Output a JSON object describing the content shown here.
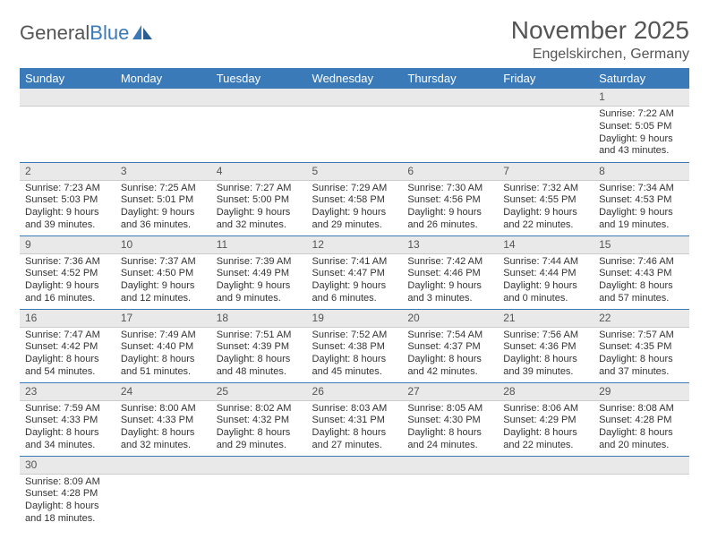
{
  "logo": {
    "text1": "General",
    "text2": "Blue"
  },
  "title": "November 2025",
  "location": "Engelskirchen, Germany",
  "colors": {
    "header_bg": "#3a7ab8",
    "header_text": "#ffffff",
    "daynum_bg": "#e9e9e9",
    "row_divider": "#3a7ab8",
    "text": "#333333",
    "title_text": "#555555"
  },
  "fonts": {
    "title_size_pt": 21,
    "location_size_pt": 12,
    "weekday_size_pt": 10,
    "daynum_size_pt": 9,
    "body_size_pt": 8
  },
  "weekdays": [
    "Sunday",
    "Monday",
    "Tuesday",
    "Wednesday",
    "Thursday",
    "Friday",
    "Saturday"
  ],
  "weeks": [
    [
      {
        "n": "",
        "sunrise": "",
        "sunset": "",
        "daylight": ""
      },
      {
        "n": "",
        "sunrise": "",
        "sunset": "",
        "daylight": ""
      },
      {
        "n": "",
        "sunrise": "",
        "sunset": "",
        "daylight": ""
      },
      {
        "n": "",
        "sunrise": "",
        "sunset": "",
        "daylight": ""
      },
      {
        "n": "",
        "sunrise": "",
        "sunset": "",
        "daylight": ""
      },
      {
        "n": "",
        "sunrise": "",
        "sunset": "",
        "daylight": ""
      },
      {
        "n": "1",
        "sunrise": "Sunrise: 7:22 AM",
        "sunset": "Sunset: 5:05 PM",
        "daylight": "Daylight: 9 hours and 43 minutes."
      }
    ],
    [
      {
        "n": "2",
        "sunrise": "Sunrise: 7:23 AM",
        "sunset": "Sunset: 5:03 PM",
        "daylight": "Daylight: 9 hours and 39 minutes."
      },
      {
        "n": "3",
        "sunrise": "Sunrise: 7:25 AM",
        "sunset": "Sunset: 5:01 PM",
        "daylight": "Daylight: 9 hours and 36 minutes."
      },
      {
        "n": "4",
        "sunrise": "Sunrise: 7:27 AM",
        "sunset": "Sunset: 5:00 PM",
        "daylight": "Daylight: 9 hours and 32 minutes."
      },
      {
        "n": "5",
        "sunrise": "Sunrise: 7:29 AM",
        "sunset": "Sunset: 4:58 PM",
        "daylight": "Daylight: 9 hours and 29 minutes."
      },
      {
        "n": "6",
        "sunrise": "Sunrise: 7:30 AM",
        "sunset": "Sunset: 4:56 PM",
        "daylight": "Daylight: 9 hours and 26 minutes."
      },
      {
        "n": "7",
        "sunrise": "Sunrise: 7:32 AM",
        "sunset": "Sunset: 4:55 PM",
        "daylight": "Daylight: 9 hours and 22 minutes."
      },
      {
        "n": "8",
        "sunrise": "Sunrise: 7:34 AM",
        "sunset": "Sunset: 4:53 PM",
        "daylight": "Daylight: 9 hours and 19 minutes."
      }
    ],
    [
      {
        "n": "9",
        "sunrise": "Sunrise: 7:36 AM",
        "sunset": "Sunset: 4:52 PM",
        "daylight": "Daylight: 9 hours and 16 minutes."
      },
      {
        "n": "10",
        "sunrise": "Sunrise: 7:37 AM",
        "sunset": "Sunset: 4:50 PM",
        "daylight": "Daylight: 9 hours and 12 minutes."
      },
      {
        "n": "11",
        "sunrise": "Sunrise: 7:39 AM",
        "sunset": "Sunset: 4:49 PM",
        "daylight": "Daylight: 9 hours and 9 minutes."
      },
      {
        "n": "12",
        "sunrise": "Sunrise: 7:41 AM",
        "sunset": "Sunset: 4:47 PM",
        "daylight": "Daylight: 9 hours and 6 minutes."
      },
      {
        "n": "13",
        "sunrise": "Sunrise: 7:42 AM",
        "sunset": "Sunset: 4:46 PM",
        "daylight": "Daylight: 9 hours and 3 minutes."
      },
      {
        "n": "14",
        "sunrise": "Sunrise: 7:44 AM",
        "sunset": "Sunset: 4:44 PM",
        "daylight": "Daylight: 9 hours and 0 minutes."
      },
      {
        "n": "15",
        "sunrise": "Sunrise: 7:46 AM",
        "sunset": "Sunset: 4:43 PM",
        "daylight": "Daylight: 8 hours and 57 minutes."
      }
    ],
    [
      {
        "n": "16",
        "sunrise": "Sunrise: 7:47 AM",
        "sunset": "Sunset: 4:42 PM",
        "daylight": "Daylight: 8 hours and 54 minutes."
      },
      {
        "n": "17",
        "sunrise": "Sunrise: 7:49 AM",
        "sunset": "Sunset: 4:40 PM",
        "daylight": "Daylight: 8 hours and 51 minutes."
      },
      {
        "n": "18",
        "sunrise": "Sunrise: 7:51 AM",
        "sunset": "Sunset: 4:39 PM",
        "daylight": "Daylight: 8 hours and 48 minutes."
      },
      {
        "n": "19",
        "sunrise": "Sunrise: 7:52 AM",
        "sunset": "Sunset: 4:38 PM",
        "daylight": "Daylight: 8 hours and 45 minutes."
      },
      {
        "n": "20",
        "sunrise": "Sunrise: 7:54 AM",
        "sunset": "Sunset: 4:37 PM",
        "daylight": "Daylight: 8 hours and 42 minutes."
      },
      {
        "n": "21",
        "sunrise": "Sunrise: 7:56 AM",
        "sunset": "Sunset: 4:36 PM",
        "daylight": "Daylight: 8 hours and 39 minutes."
      },
      {
        "n": "22",
        "sunrise": "Sunrise: 7:57 AM",
        "sunset": "Sunset: 4:35 PM",
        "daylight": "Daylight: 8 hours and 37 minutes."
      }
    ],
    [
      {
        "n": "23",
        "sunrise": "Sunrise: 7:59 AM",
        "sunset": "Sunset: 4:33 PM",
        "daylight": "Daylight: 8 hours and 34 minutes."
      },
      {
        "n": "24",
        "sunrise": "Sunrise: 8:00 AM",
        "sunset": "Sunset: 4:33 PM",
        "daylight": "Daylight: 8 hours and 32 minutes."
      },
      {
        "n": "25",
        "sunrise": "Sunrise: 8:02 AM",
        "sunset": "Sunset: 4:32 PM",
        "daylight": "Daylight: 8 hours and 29 minutes."
      },
      {
        "n": "26",
        "sunrise": "Sunrise: 8:03 AM",
        "sunset": "Sunset: 4:31 PM",
        "daylight": "Daylight: 8 hours and 27 minutes."
      },
      {
        "n": "27",
        "sunrise": "Sunrise: 8:05 AM",
        "sunset": "Sunset: 4:30 PM",
        "daylight": "Daylight: 8 hours and 24 minutes."
      },
      {
        "n": "28",
        "sunrise": "Sunrise: 8:06 AM",
        "sunset": "Sunset: 4:29 PM",
        "daylight": "Daylight: 8 hours and 22 minutes."
      },
      {
        "n": "29",
        "sunrise": "Sunrise: 8:08 AM",
        "sunset": "Sunset: 4:28 PM",
        "daylight": "Daylight: 8 hours and 20 minutes."
      }
    ],
    [
      {
        "n": "30",
        "sunrise": "Sunrise: 8:09 AM",
        "sunset": "Sunset: 4:28 PM",
        "daylight": "Daylight: 8 hours and 18 minutes."
      },
      {
        "n": "",
        "sunrise": "",
        "sunset": "",
        "daylight": ""
      },
      {
        "n": "",
        "sunrise": "",
        "sunset": "",
        "daylight": ""
      },
      {
        "n": "",
        "sunrise": "",
        "sunset": "",
        "daylight": ""
      },
      {
        "n": "",
        "sunrise": "",
        "sunset": "",
        "daylight": ""
      },
      {
        "n": "",
        "sunrise": "",
        "sunset": "",
        "daylight": ""
      },
      {
        "n": "",
        "sunrise": "",
        "sunset": "",
        "daylight": ""
      }
    ]
  ]
}
